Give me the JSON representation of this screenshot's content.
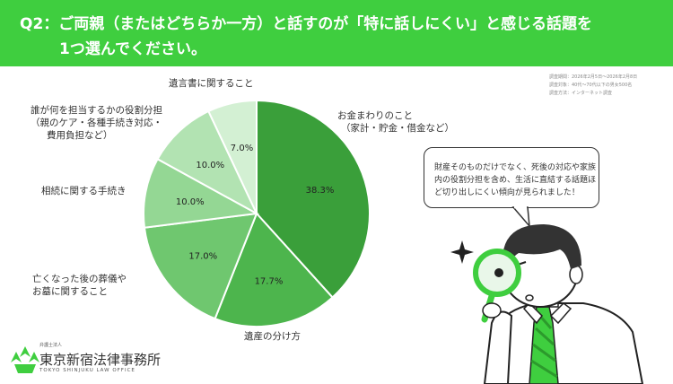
{
  "header": {
    "line1": "Q2：ご両親（またはどちらか一方）と話すのが「特に話しにくい」と感じる話題を",
    "line2": "1つ選んでください。",
    "bg_color": "#3fce3f"
  },
  "meta": [
    "調査期間：2026年2月5日～2026年2月8日",
    "調査対象：40代～70代以下の男女500名",
    "調査方法：インターネット調査"
  ],
  "chart_data": {
    "type": "pie",
    "title": "",
    "start_angle_deg": 0,
    "direction": "clockwise",
    "slices": [
      {
        "label": "お金まわりのこと\n（家計・貯金・借金など）",
        "value": 38.3,
        "display": "38.3%",
        "color": "#3a9f3a"
      },
      {
        "label": "遺産の分け方",
        "value": 17.7,
        "display": "17.7%",
        "color": "#4db54d"
      },
      {
        "label": "亡くなった後の葬儀や\nお墓に関すること",
        "value": 17.0,
        "display": "17.0%",
        "color": "#6fc76f"
      },
      {
        "label": "相続に関する手続き",
        "value": 10.0,
        "display": "10.0%",
        "color": "#94d794"
      },
      {
        "label": "誰が何を担当するかの役割分担\n（親のケア・各種手続き対応・\n費用負担など）",
        "value": 10.0,
        "display": "10.0%",
        "color": "#b2e3b2"
      },
      {
        "label": "遺言書に関すること",
        "value": 7.0,
        "display": "7.0%",
        "color": "#d3f0d3"
      }
    ]
  },
  "bubble": {
    "lines": [
      "財産そのものだけでなく、死後の対応や家族",
      "内の役割分担を含め、生活に直結する話題ほ",
      "ど切り出しにくい傾向が見られました！"
    ]
  },
  "logo": {
    "small": "弁護士法人",
    "name": "東京新宿法律事務所",
    "english": "TOKYO SHINJUKU LAW OFFICE"
  }
}
